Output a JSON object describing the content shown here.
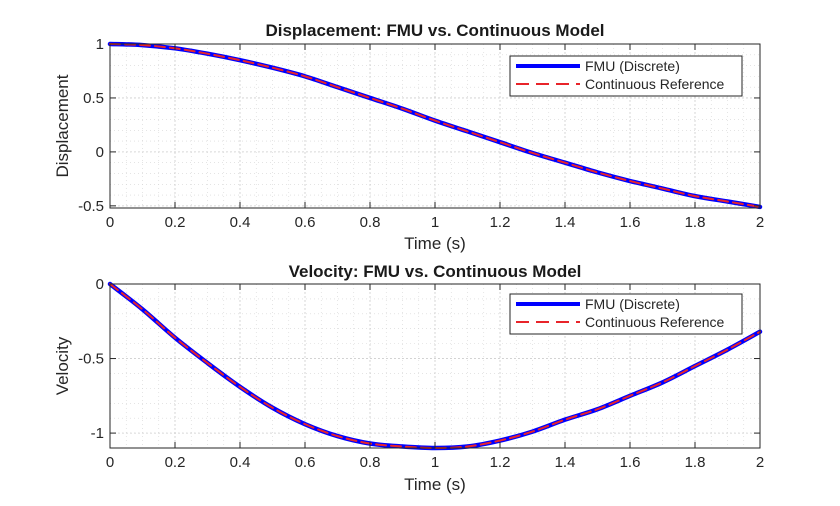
{
  "colors": {
    "fmu": "#0000ff",
    "reference": "#e8242a",
    "axes": "#262626",
    "grid": "#d4d4d4"
  },
  "chart_data": [
    {
      "type": "line",
      "title": "Displacement: FMU vs. Continuous Model",
      "xlabel": "Time (s)",
      "ylabel": "Displacement",
      "xlim": [
        0,
        2
      ],
      "ylim": [
        -0.52,
        1.0
      ],
      "xticks": [
        0,
        0.2,
        0.4,
        0.6,
        0.8,
        1,
        1.2,
        1.4,
        1.6,
        1.8,
        2
      ],
      "xtick_labels": [
        "0",
        "0.2",
        "0.4",
        "0.6",
        "0.8",
        "1",
        "1.2",
        "1.4",
        "1.6",
        "1.8",
        "2"
      ],
      "yticks": [
        1,
        0.5,
        0,
        -0.5
      ],
      "ytick_labels": [
        "1",
        "0.5",
        "0",
        "-0.5"
      ],
      "grid": true,
      "minor_grid": true,
      "legend_position": "top-right",
      "legend": [
        "FMU (Discrete)",
        "Continuous Reference"
      ],
      "x": [
        0,
        0.1,
        0.2,
        0.3,
        0.4,
        0.5,
        0.6,
        0.7,
        0.8,
        0.9,
        1.0,
        1.1,
        1.2,
        1.3,
        1.4,
        1.5,
        1.6,
        1.7,
        1.8,
        1.9,
        2.0
      ],
      "series": [
        {
          "name": "FMU (Discrete)",
          "style": "solid",
          "values": [
            1.0,
            0.99,
            0.96,
            0.91,
            0.85,
            0.78,
            0.7,
            0.6,
            0.5,
            0.4,
            0.29,
            0.19,
            0.09,
            -0.01,
            -0.1,
            -0.19,
            -0.27,
            -0.34,
            -0.41,
            -0.46,
            -0.51
          ]
        },
        {
          "name": "Continuous Reference",
          "style": "dashed",
          "values": [
            1.0,
            0.99,
            0.96,
            0.91,
            0.85,
            0.78,
            0.7,
            0.6,
            0.5,
            0.4,
            0.29,
            0.19,
            0.09,
            -0.01,
            -0.1,
            -0.19,
            -0.27,
            -0.34,
            -0.41,
            -0.46,
            -0.51
          ]
        }
      ]
    },
    {
      "type": "line",
      "title": "Velocity: FMU vs. Continuous Model",
      "xlabel": "Time (s)",
      "ylabel": "Velocity",
      "xlim": [
        0,
        2
      ],
      "ylim": [
        -1.1,
        0.0
      ],
      "xticks": [
        0,
        0.2,
        0.4,
        0.6,
        0.8,
        1,
        1.2,
        1.4,
        1.6,
        1.8,
        2
      ],
      "xtick_labels": [
        "0",
        "0.2",
        "0.4",
        "0.6",
        "0.8",
        "1",
        "1.2",
        "1.4",
        "1.6",
        "1.8",
        "2"
      ],
      "yticks": [
        0,
        -0.5,
        -1
      ],
      "ytick_labels": [
        "0",
        "-0.5",
        "-1"
      ],
      "grid": true,
      "minor_grid": true,
      "legend_position": "top-right",
      "legend": [
        "FMU (Discrete)",
        "Continuous Reference"
      ],
      "x": [
        0,
        0.1,
        0.2,
        0.3,
        0.4,
        0.5,
        0.6,
        0.7,
        0.8,
        0.9,
        1.0,
        1.1,
        1.2,
        1.3,
        1.4,
        1.5,
        1.6,
        1.7,
        1.8,
        1.9,
        2.0
      ],
      "series": [
        {
          "name": "FMU (Discrete)",
          "style": "solid",
          "values": [
            0.0,
            -0.17,
            -0.36,
            -0.53,
            -0.69,
            -0.83,
            -0.94,
            -1.02,
            -1.07,
            -1.09,
            -1.1,
            -1.09,
            -1.05,
            -0.99,
            -0.91,
            -0.84,
            -0.75,
            -0.66,
            -0.55,
            -0.44,
            -0.32
          ]
        },
        {
          "name": "Continuous Reference",
          "style": "dashed",
          "values": [
            0.0,
            -0.17,
            -0.36,
            -0.53,
            -0.69,
            -0.83,
            -0.94,
            -1.02,
            -1.07,
            -1.09,
            -1.1,
            -1.09,
            -1.05,
            -0.99,
            -0.91,
            -0.84,
            -0.75,
            -0.66,
            -0.55,
            -0.44,
            -0.32
          ]
        }
      ]
    }
  ]
}
